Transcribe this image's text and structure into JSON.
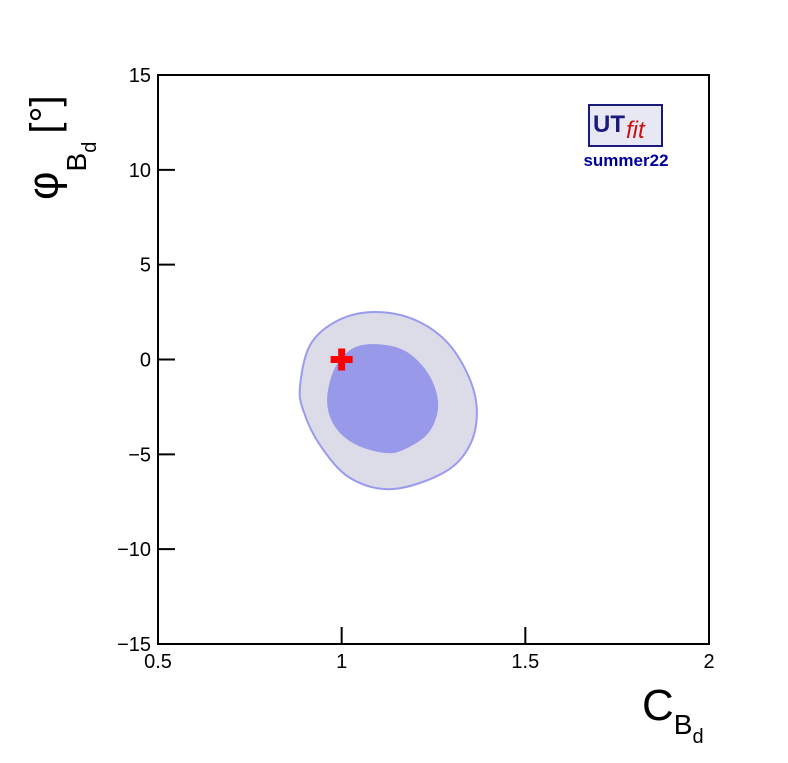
{
  "chart_data": {
    "type": "contour",
    "xlabel": {
      "main": "C",
      "sub": "B",
      "subsub": "d"
    },
    "ylabel": {
      "main": "φ",
      "sub": "B",
      "subsub": "d",
      "unit": "[°]"
    },
    "logo": {
      "ut": "UT",
      "fit": "fit",
      "tag": "summer22"
    },
    "xlim": [
      0.5,
      2
    ],
    "ylim": [
      -15,
      15
    ],
    "xticks": [
      0.5,
      1,
      1.5,
      2
    ],
    "yticks": [
      {
        "value": -15,
        "label": "−15"
      },
      {
        "value": -10,
        "label": "−10"
      },
      {
        "value": -5,
        "label": "−5"
      },
      0,
      5,
      10,
      15
    ],
    "series": [
      {
        "color": "#dcdce8",
        "edge": "#9a9aee",
        "x": [
          0.887,
          0.914,
          0.982,
          1.077,
          1.186,
          1.281,
          1.344,
          1.368,
          1.349,
          1.281,
          1.14,
          1.023,
          0.941,
          0.895
        ],
        "y": [
          -1.34,
          0.76,
          1.98,
          2.5,
          2.19,
          1.03,
          -0.82,
          -2.66,
          -4.51,
          -5.93,
          -6.83,
          -6.25,
          -4.51,
          -2.66
        ]
      },
      {
        "color": "#9999ea",
        "edge": "#9999ea",
        "x": [
          0.963,
          0.982,
          1.028,
          1.091,
          1.172,
          1.235,
          1.26,
          1.235,
          1.172,
          1.118,
          1.036,
          0.982
        ],
        "y": [
          -2.14,
          -0.55,
          0.5,
          0.76,
          0.4,
          -0.82,
          -2.4,
          -3.82,
          -4.67,
          -4.88,
          -4.4,
          -3.45
        ]
      }
    ],
    "markers": {
      "x": [
        1
      ],
      "y": [
        0
      ],
      "color": "#ff0000"
    }
  }
}
